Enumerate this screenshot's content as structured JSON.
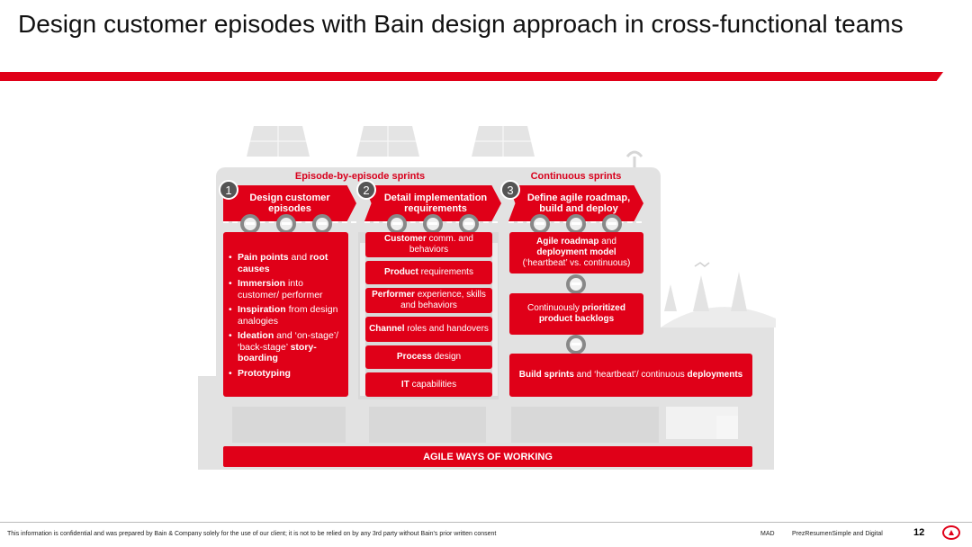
{
  "title": "Design customer episodes with Bain design approach in cross-functional teams",
  "phases": {
    "episode": "Episode-by-episode sprints",
    "continuous": "Continuous sprints"
  },
  "steps": [
    {
      "num": "1",
      "label": "Design customer episodes"
    },
    {
      "num": "2",
      "label": "Detail implementation requirements"
    },
    {
      "num": "3",
      "label": "Define agile roadmap, build and deploy"
    }
  ],
  "design_bullets": [
    {
      "bold": "Pain points",
      "mid": " and ",
      "bold2": "root causes",
      "rest": ""
    },
    {
      "bold": "Immersion",
      "mid": " into customer/ performer",
      "bold2": "",
      "rest": ""
    },
    {
      "bold": "Inspiration",
      "mid": " from design analogies",
      "bold2": "",
      "rest": ""
    },
    {
      "bold": "Ideation",
      "mid": " and ‘on-stage’/ ‘back-stage’ ",
      "bold2": "story-boarding",
      "rest": ""
    },
    {
      "bold": "Prototyping",
      "mid": "",
      "bold2": "",
      "rest": ""
    }
  ],
  "requirements": [
    {
      "bold": "Customer",
      "rest": " comm. and behaviors"
    },
    {
      "bold": "Product",
      "rest": " requirements"
    },
    {
      "bold": "Performer",
      "rest": " experience, skills and behaviors"
    },
    {
      "bold": "Channel",
      "rest": " roles and handovers"
    },
    {
      "bold": "Process",
      "rest": " design"
    },
    {
      "bold": "IT",
      "rest": " capabilities"
    }
  ],
  "roadmap": {
    "box1_bold": "Agile roadmap",
    "box1_mid": " and ",
    "box1_bold2": "deployment model",
    "box1_rest": "(‘heartbeat’ vs. continuous)",
    "box2_pre": "Continuously ",
    "box2_bold": "prioritized product backlogs",
    "box3_bold": "Build sprints",
    "box3_mid": " and ‘heartbeat’/ continuous ",
    "box3_bold2": "deployments"
  },
  "agile_bar": "AGILE WAYS OF WORKING",
  "footer": {
    "confidential": "This information is confidential and was prepared by Bain & Company solely for the use of our client; it is not to be relied on by any 3rd party without Bain's prior written consent",
    "code": "MAD",
    "deck": "PrezResumenSimple and Digital",
    "page": "12"
  },
  "colors": {
    "accent": "#e00018",
    "building": "#e2e2e2"
  }
}
